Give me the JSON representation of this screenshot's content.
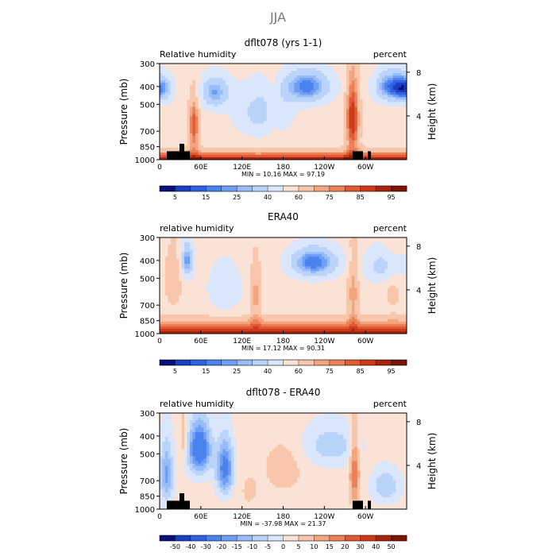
{
  "figure_title": "JJA",
  "chart_data": [
    {
      "type": "heatmap",
      "title": "dflt078 (yrs 1-1)",
      "left_label": "Relative humidity",
      "right_label": "percent",
      "ylabel": "Pressure (mb)",
      "ylabel_right": "Height (km)",
      "x_ticks": [
        "0",
        "60E",
        "120E",
        "180",
        "120W",
        "60W"
      ],
      "y_ticks": [
        "300",
        "400",
        "500",
        "700",
        "850",
        "1000"
      ],
      "y2_ticks": [
        "8",
        "4"
      ],
      "xlim": [
        0,
        360
      ],
      "ylim": [
        1000,
        300
      ],
      "stats": {
        "min_label": "MIN =",
        "min": "10.16",
        "max_label": "MAX =",
        "max": "97.19"
      },
      "colorbar": {
        "levels": [
          5,
          10,
          15,
          20,
          25,
          30,
          40,
          50,
          60,
          70,
          75,
          80,
          85,
          90,
          95
        ],
        "tick_labels": [
          "5",
          "15",
          "25",
          "40",
          "60",
          "75",
          "85",
          "95"
        ],
        "colors": [
          "#08107a",
          "#1c3fc0",
          "#2f62e0",
          "#4a82ee",
          "#6e9ff4",
          "#97bcf8",
          "#bad3fa",
          "#dae6fb",
          "#fbe2d6",
          "#f8c6ab",
          "#f3a57f",
          "#ec8058",
          "#e15a34",
          "#cc3a1a",
          "#a8240e",
          "#7a1405"
        ]
      },
      "description_fields": {
        "left_blue_max_lon": 30,
        "ridges": [
          115,
          145,
          170
        ],
        "blue_centers": [
          [
            30,
            400,
            15
          ],
          [
            80,
            420,
            30
          ],
          [
            210,
            390,
            12
          ],
          [
            330,
            390,
            14
          ]
        ],
        "dry_lon_band": [
          [
            120,
            190
          ]
        ],
        "moist_column_lon": [
          50,
          285
        ],
        "boundary_layer": 88
      }
    },
    {
      "type": "heatmap",
      "title": "ERA40",
      "left_label": "relative humidity",
      "right_label": "percent",
      "ylabel": "Pressure (mb)",
      "ylabel_right": "Height (km)",
      "x_ticks": [
        "0",
        "60E",
        "120E",
        "180",
        "120W",
        "60W"
      ],
      "y_ticks": [
        "300",
        "400",
        "500",
        "700",
        "850",
        "1000"
      ],
      "y2_ticks": [
        "8",
        "4"
      ],
      "xlim": [
        0,
        360
      ],
      "ylim": [
        1000,
        300
      ],
      "stats": {
        "min_label": "MIN =",
        "min": "17.12",
        "max_label": "MAX =",
        "max": "90.31"
      },
      "colorbar": {
        "levels": [
          5,
          10,
          15,
          20,
          25,
          30,
          40,
          50,
          60,
          70,
          75,
          80,
          85,
          90,
          95
        ],
        "tick_labels": [
          "5",
          "15",
          "25",
          "40",
          "60",
          "75",
          "85",
          "95"
        ],
        "colors": [
          "#08107a",
          "#1c3fc0",
          "#2f62e0",
          "#4a82ee",
          "#6e9ff4",
          "#97bcf8",
          "#bad3fa",
          "#dae6fb",
          "#fbe2d6",
          "#f8c6ab",
          "#f3a57f",
          "#ec8058",
          "#e15a34",
          "#cc3a1a",
          "#a8240e",
          "#7a1405"
        ]
      },
      "description_fields": {
        "blue_centers": [
          [
            40,
            380,
            20
          ],
          [
            230,
            400,
            18
          ],
          [
            320,
            420,
            30
          ]
        ],
        "moist_column_lon": [
          40,
          140,
          280
        ],
        "boundary_layer": 85
      }
    },
    {
      "type": "heatmap",
      "title": "dflt078 - ERA40",
      "left_label": "relative humidity",
      "right_label": "percent",
      "ylabel": "Pressure (mb)",
      "ylabel_right": "Height (km)",
      "x_ticks": [
        "0",
        "60E",
        "120E",
        "180",
        "120W",
        "60W"
      ],
      "y_ticks": [
        "300",
        "400",
        "500",
        "700",
        "850",
        "1000"
      ],
      "y2_ticks": [
        "8",
        "4"
      ],
      "xlim": [
        0,
        360
      ],
      "ylim": [
        1000,
        300
      ],
      "stats": {
        "min_label": "MIN =",
        "min": "-37.98",
        "max_label": "MAX =",
        "max": "21.37"
      },
      "colorbar": {
        "levels": [
          -50,
          -40,
          -30,
          -20,
          -15,
          -10,
          -5,
          0,
          5,
          10,
          15,
          20,
          30,
          40,
          50
        ],
        "tick_labels": [
          "-50",
          "-40",
          "-30",
          "-20",
          "-15",
          "-10",
          "-5",
          "0",
          "5",
          "10",
          "15",
          "20",
          "30",
          "40",
          "50"
        ],
        "colors": [
          "#08107a",
          "#1c3fc0",
          "#2f62e0",
          "#4a82ee",
          "#6e9ff4",
          "#97bcf8",
          "#bad3fa",
          "#dae6fb",
          "#fbe2d6",
          "#f8c6ab",
          "#f3a57f",
          "#ec8058",
          "#e15a34",
          "#cc3a1a",
          "#a8240e",
          "#7a1405"
        ]
      },
      "description_fields": {
        "neg_centers": [
          [
            60,
            500,
            -30
          ],
          [
            95,
            600,
            -25
          ],
          [
            250,
            450,
            -10
          ]
        ],
        "pos_centers": [
          [
            285,
            600,
            20
          ],
          [
            180,
            600,
            8
          ]
        ]
      }
    }
  ]
}
